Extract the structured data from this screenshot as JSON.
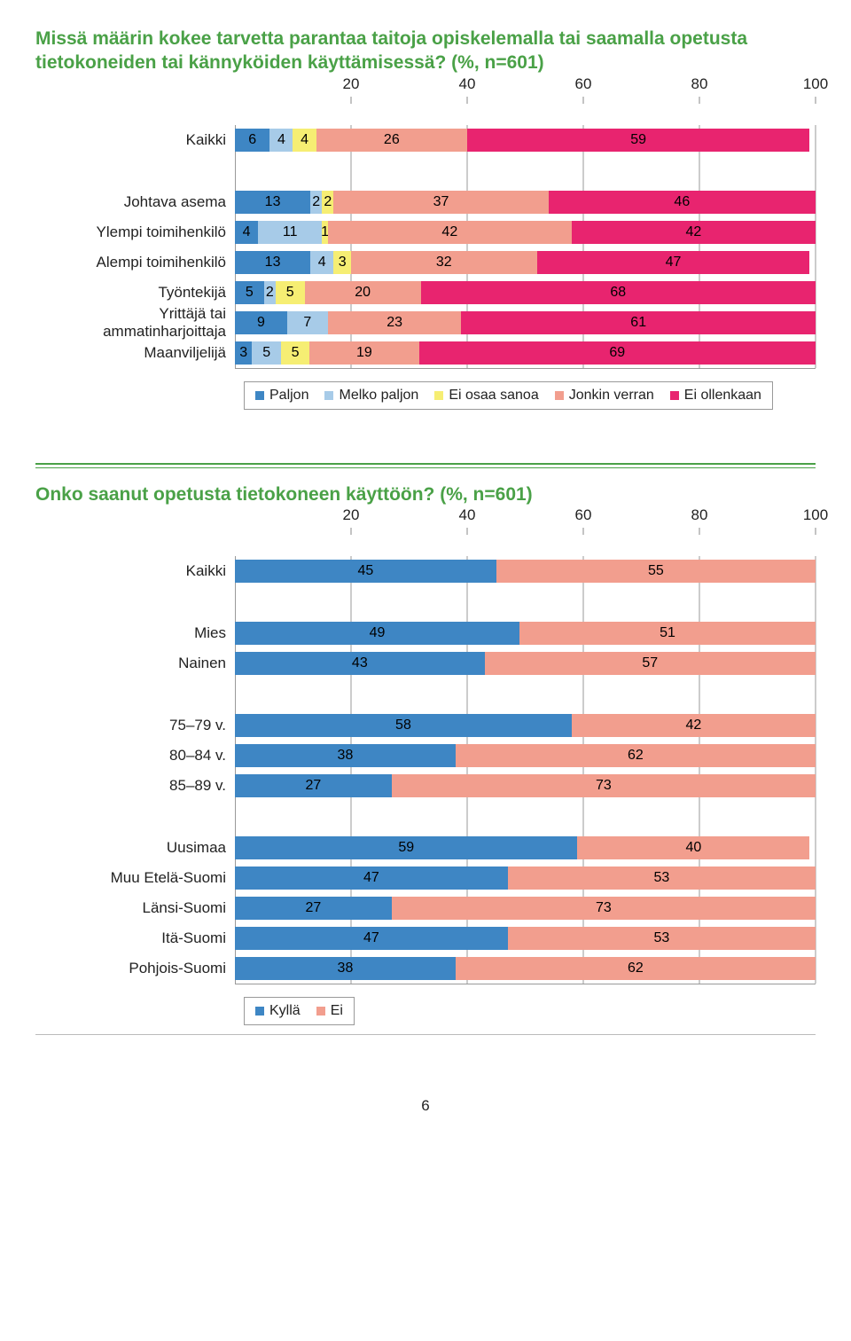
{
  "page_number": "6",
  "chart1": {
    "title": "Missä määrin kokee tarvetta parantaa taitoja opiskelemalla tai saamalla opetusta tietokoneiden tai kännyköiden käyttämisessä? (%, n=601)",
    "x_ticks": [
      20,
      40,
      60,
      80,
      100
    ],
    "xlim": 100,
    "colors": {
      "Paljon": "#3e86c4",
      "Melko paljon": "#a7cbe8",
      "Ei osaa sanoa": "#f6ee73",
      "Jonkin verran": "#f29e8e",
      "Ei ollenkaan": "#e8246f"
    },
    "legend": [
      "Paljon",
      "Melko paljon",
      "Ei osaa sanoa",
      "Jonkin verran",
      "Ei ollenkaan"
    ],
    "groups": [
      [
        {
          "label": "Kaikki",
          "values": [
            6,
            4,
            4,
            26,
            59
          ]
        }
      ],
      [
        {
          "label": "Johtava asema",
          "values": [
            13,
            2,
            2,
            37,
            46
          ]
        },
        {
          "label": "Ylempi toimihenkilö",
          "values": [
            4,
            11,
            1,
            42,
            42
          ]
        },
        {
          "label": "Alempi toimihenkilö",
          "values": [
            13,
            4,
            3,
            32,
            47
          ]
        },
        {
          "label": "Työntekijä",
          "values": [
            5,
            2,
            5,
            20,
            68
          ]
        },
        {
          "label": "Yrittäjä tai ammatinharjoittaja",
          "values": [
            9,
            7,
            0,
            23,
            61
          ]
        },
        {
          "label": "Maanviljelijä",
          "values": [
            3,
            5,
            5,
            19,
            69
          ]
        }
      ]
    ]
  },
  "chart2": {
    "title": "Onko saanut opetusta tietokoneen käyttöön? (%, n=601)",
    "x_ticks": [
      20,
      40,
      60,
      80,
      100
    ],
    "xlim": 100,
    "colors": {
      "Kyllä": "#3e86c4",
      "Ei": "#f29e8e"
    },
    "legend": [
      "Kyllä",
      "Ei"
    ],
    "groups": [
      [
        {
          "label": "Kaikki",
          "values": [
            45,
            55
          ]
        }
      ],
      [
        {
          "label": "Mies",
          "values": [
            49,
            51
          ]
        },
        {
          "label": "Nainen",
          "values": [
            43,
            57
          ]
        }
      ],
      [
        {
          "label": "75–79 v.",
          "values": [
            58,
            42
          ]
        },
        {
          "label": "80–84 v.",
          "values": [
            38,
            62
          ]
        },
        {
          "label": "85–89 v.",
          "values": [
            27,
            73
          ]
        }
      ],
      [
        {
          "label": "Uusimaa",
          "values": [
            59,
            40
          ]
        },
        {
          "label": "Muu Etelä-Suomi",
          "values": [
            47,
            53
          ]
        },
        {
          "label": "Länsi-Suomi",
          "values": [
            27,
            73
          ]
        },
        {
          "label": "Itä-Suomi",
          "values": [
            47,
            53
          ]
        },
        {
          "label": "Pohjois-Suomi",
          "values": [
            38,
            62
          ]
        }
      ]
    ]
  }
}
